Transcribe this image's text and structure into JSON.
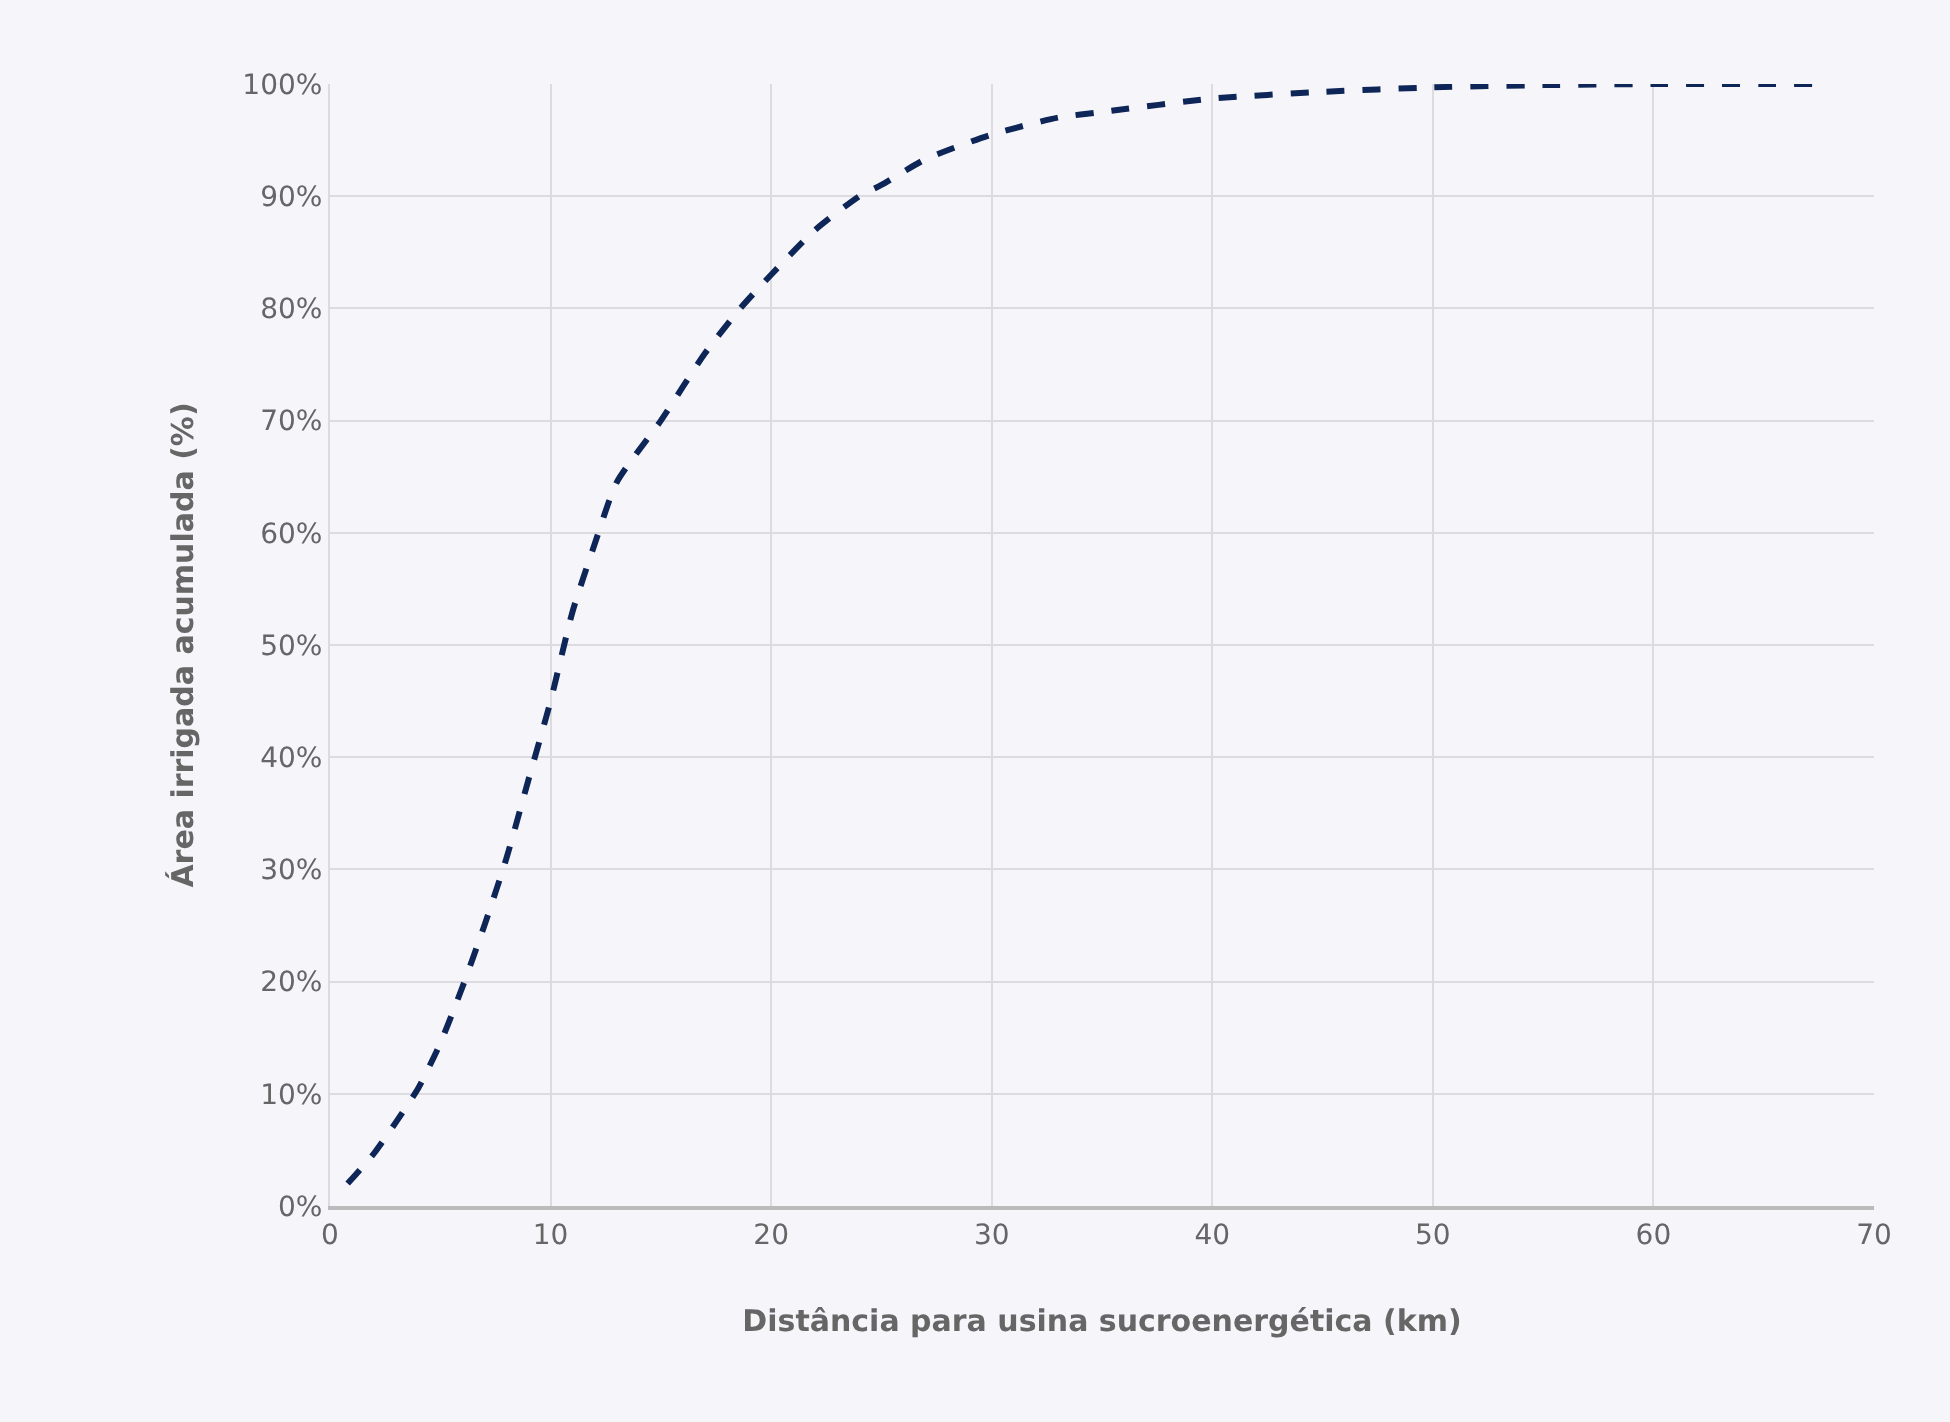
{
  "chart_data": {
    "type": "line",
    "xlabel": "Distância para usina sucroenergética (km)",
    "ylabel": "Área irrigada acumulada (%)",
    "x": [
      0.8,
      2,
      3,
      4,
      5,
      6,
      7,
      8,
      9,
      10,
      11,
      12,
      13,
      15,
      17,
      18.6,
      20,
      22,
      24,
      25,
      27,
      30,
      33,
      35,
      40,
      45,
      50,
      55,
      60,
      67.5
    ],
    "series": [
      {
        "color": "#0d2557",
        "values": [
          2,
          4.7,
          7.5,
          10.5,
          14.5,
          19.5,
          25,
          31,
          38,
          45,
          53,
          59,
          64.5,
          70,
          76,
          80,
          83,
          87,
          90,
          91,
          93.3,
          95.5,
          97,
          97.5,
          98.7,
          99.3,
          99.7,
          99.9,
          100,
          100
        ]
      }
    ],
    "xlim": [
      0,
      70
    ],
    "xticks": [
      0,
      10,
      20,
      30,
      40,
      50,
      60,
      70
    ],
    "ylim": [
      0,
      100
    ],
    "yticks": [
      {
        "value": 0,
        "label": "0%"
      },
      {
        "value": 10,
        "label": "10%"
      },
      {
        "value": 20,
        "label": "20%"
      },
      {
        "value": 30,
        "label": "30%"
      },
      {
        "value": 40,
        "label": "40%"
      },
      {
        "value": 50,
        "label": "50%"
      },
      {
        "value": 60,
        "label": "60%"
      },
      {
        "value": 70,
        "label": "70%"
      },
      {
        "value": 80,
        "label": "80%"
      },
      {
        "value": 90,
        "label": "90%"
      },
      {
        "value": 100,
        "label": "100%"
      }
    ],
    "grid": true,
    "marker": "none",
    "line_style": "dashed"
  }
}
